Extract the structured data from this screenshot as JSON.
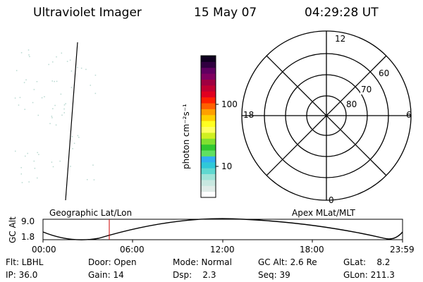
{
  "header": {
    "instrument": "Ultraviolet Imager",
    "date": "15 May 07",
    "time": "04:29:28 UT"
  },
  "colorbar": {
    "unit_label": "photon cm⁻²s⁻¹",
    "ticks": [
      "100",
      "10"
    ],
    "scale": "log",
    "colors": [
      "#ffffff",
      "#e0ece8",
      "#c8e8e0",
      "#a0e4d8",
      "#60d8d0",
      "#30c8d8",
      "#30b0f0",
      "#60e060",
      "#30c830",
      "#80e030",
      "#d0f020",
      "#ffff60",
      "#ffff20",
      "#ffd000",
      "#ffa000",
      "#ff6000",
      "#ff2000",
      "#e00020",
      "#c00030",
      "#a00040",
      "#800060",
      "#600060",
      "#300040",
      "#100020"
    ]
  },
  "polar_plot": {
    "mlt_labels": [
      "12",
      "18",
      "6",
      "0"
    ],
    "mlat_labels": [
      "60",
      "70",
      "80"
    ]
  },
  "orbit_panel": {
    "left_title": "Geographic Lat/Lon",
    "right_title": "Apex MLat/MLT",
    "y_axis_label": "GC Alt",
    "y_ticks": [
      "9.0",
      "1.8"
    ],
    "x_ticks": [
      "00:00",
      "06:00",
      "12:00",
      "18:00",
      "23:59"
    ],
    "current_time_color": "#cc0000"
  },
  "status": {
    "flt": "Flt: LBHL",
    "ip": "IP: 36.0",
    "door": "Door: Open",
    "gain": "Gain: 14",
    "mode": "Mode: Normal",
    "dsp": "Dsp:    2.3",
    "gc_alt": "GC Alt: 2.6 Re",
    "seq": "Seq: 39",
    "glat": "GLat:    8.2",
    "glon": "GLon: 211.3"
  }
}
